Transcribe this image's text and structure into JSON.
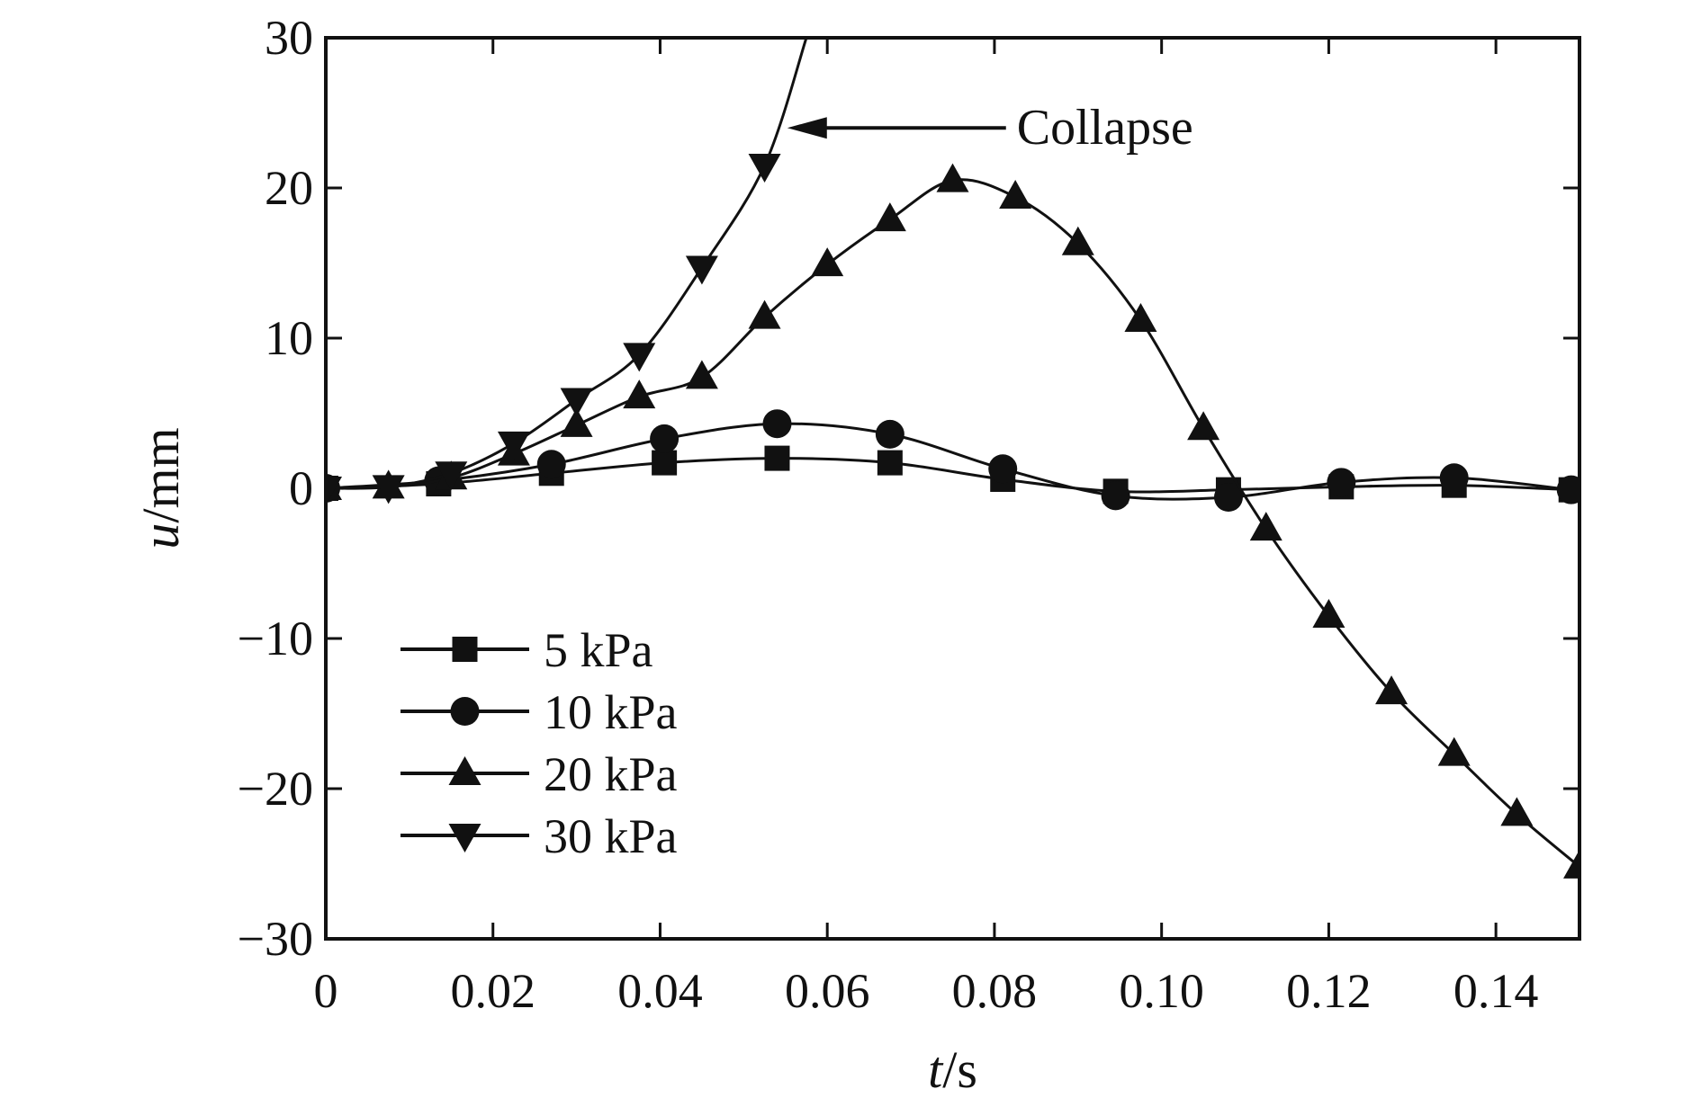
{
  "chart_data": {
    "type": "line",
    "title": "",
    "xlabel": {
      "var": "t",
      "unit": "/s"
    },
    "ylabel": {
      "var": "u",
      "unit": "/mm"
    },
    "xlim": [
      0,
      0.15
    ],
    "ylim": [
      -30,
      30
    ],
    "xticks": [
      0,
      0.02,
      0.04,
      0.06,
      0.08,
      0.1,
      0.12,
      0.14
    ],
    "xtick_labels": [
      "0",
      "0.02",
      "0.04",
      "0.06",
      "0.08",
      "0.10",
      "0.12",
      "0.14"
    ],
    "yticks": [
      30,
      20,
      10,
      0,
      -10,
      -20,
      -30
    ],
    "ytick_labels": [
      "30",
      "20",
      "10",
      "0",
      "−10",
      "−20",
      "−30"
    ],
    "grid": false,
    "legend_position": "lower-left",
    "annotation": {
      "text": "Collapse",
      "points_to_series": "30 kPa",
      "at": [
        0.055,
        24
      ]
    },
    "series": [
      {
        "name": "5 kPa",
        "marker": "square",
        "x": [
          0,
          0.0135,
          0.027,
          0.0405,
          0.054,
          0.0675,
          0.081,
          0.0945,
          0.108,
          0.1215,
          0.135,
          0.149
        ],
        "values": [
          0,
          0.3,
          1.0,
          1.7,
          2.0,
          1.7,
          0.6,
          -0.2,
          -0.1,
          0.1,
          0.2,
          -0.1
        ]
      },
      {
        "name": "10 kPa",
        "marker": "circle",
        "x": [
          0,
          0.0135,
          0.027,
          0.0405,
          0.054,
          0.0675,
          0.081,
          0.0945,
          0.108,
          0.1215,
          0.135,
          0.149
        ],
        "values": [
          0,
          0.5,
          1.6,
          3.3,
          4.3,
          3.6,
          1.3,
          -0.5,
          -0.6,
          0.4,
          0.7,
          -0.1
        ]
      },
      {
        "name": "20 kPa",
        "marker": "triangle-up",
        "x": [
          0,
          0.0075,
          0.015,
          0.0225,
          0.03,
          0.0375,
          0.045,
          0.0525,
          0.06,
          0.0675,
          0.075,
          0.0825,
          0.09,
          0.0975,
          0.105,
          0.1125,
          0.12,
          0.1275,
          0.135,
          0.1425,
          0.15
        ],
        "values": [
          0,
          0.1,
          0.7,
          2.3,
          4.2,
          6.1,
          7.4,
          11.4,
          14.9,
          17.9,
          20.5,
          19.4,
          16.3,
          11.2,
          4.0,
          -2.7,
          -8.5,
          -13.6,
          -17.7,
          -21.7,
          -25.2
        ]
      },
      {
        "name": "30 kPa",
        "marker": "triangle-down",
        "x": [
          0,
          0.0075,
          0.015,
          0.0225,
          0.03,
          0.0375,
          0.045,
          0.0525,
          0.0575
        ],
        "values": [
          0,
          0.1,
          1.0,
          3.0,
          5.9,
          8.9,
          14.7,
          21.5,
          30.0
        ]
      }
    ]
  }
}
